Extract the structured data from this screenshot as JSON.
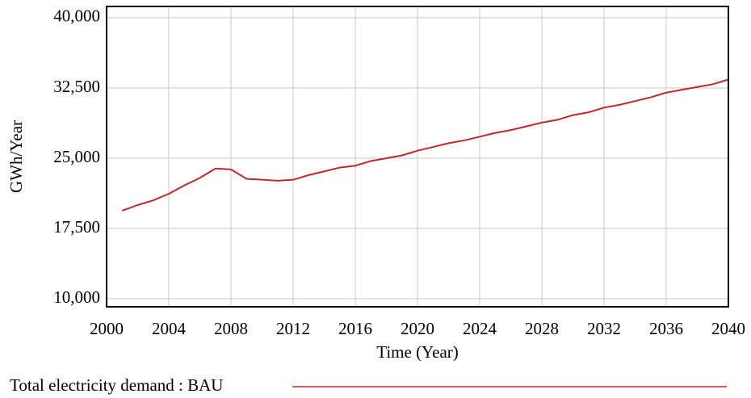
{
  "chart_data": {
    "type": "line",
    "x_label": "Time (Year)",
    "y_label": "GWh/Year",
    "x": [
      2001,
      2002,
      2003,
      2004,
      2005,
      2006,
      2007,
      2008,
      2009,
      2010,
      2011,
      2012,
      2013,
      2014,
      2015,
      2016,
      2017,
      2018,
      2019,
      2020,
      2021,
      2022,
      2023,
      2024,
      2025,
      2026,
      2027,
      2028,
      2029,
      2030,
      2031,
      2032,
      2033,
      2034,
      2035,
      2036,
      2037,
      2038,
      2039,
      2040
    ],
    "series": [
      {
        "name": "Total electricity demand : BAU",
        "color": "#c0282e",
        "values": [
          19400,
          20000,
          20500,
          21200,
          22100,
          22900,
          23900,
          23800,
          22800,
          22700,
          22600,
          22700,
          23200,
          23600,
          24000,
          24200,
          24700,
          25000,
          25300,
          25800,
          26200,
          26600,
          26900,
          27300,
          27700,
          28000,
          28400,
          28800,
          29100,
          29600,
          29900,
          30400,
          30700,
          31100,
          31500,
          32000,
          32300,
          32600,
          32900,
          33400
        ]
      }
    ],
    "xlim": [
      2000,
      2040
    ],
    "xticks": [
      2000,
      2004,
      2008,
      2012,
      2016,
      2020,
      2024,
      2028,
      2032,
      2036,
      2040
    ],
    "ylim": [
      9140,
      41200
    ],
    "yticks": [
      {
        "value": 10000,
        "label": "10,000"
      },
      {
        "value": 17500,
        "label": "17,500"
      },
      {
        "value": 25000,
        "label": "25,000"
      },
      {
        "value": 32500,
        "label": "32,500"
      },
      {
        "value": 40000,
        "label": "40,000"
      }
    ],
    "grid": true
  }
}
